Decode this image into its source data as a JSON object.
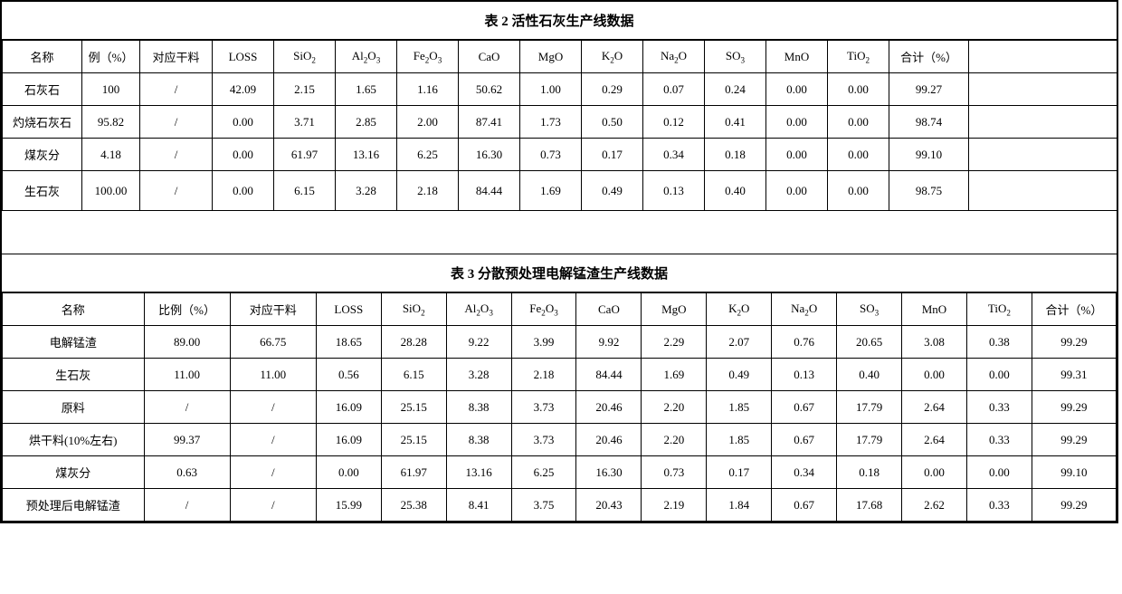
{
  "page": {
    "background_color": "#ffffff",
    "border_color": "#000000",
    "font_family": "SimSun",
    "title_fontsize": 15,
    "cell_fontsize": 13
  },
  "table2": {
    "title": "表 2  活性石灰生产线数据",
    "columns": [
      "名称",
      "例（%）",
      "对应干料",
      "LOSS",
      "SiO₂",
      "Al₂O₃",
      "Fe₂O₃",
      "CaO",
      "MgO",
      "K₂O",
      "Na₂O",
      "SO₃",
      "MnO",
      "TiO₂",
      "合计（%）"
    ],
    "rows": [
      {
        "name": "石灰石",
        "pct": "100",
        "dry": "/",
        "loss": "42.09",
        "sio2": "2.15",
        "al2o3": "1.65",
        "fe2o3": "1.16",
        "cao": "50.62",
        "mgo": "1.00",
        "k2o": "0.29",
        "na2o": "0.07",
        "so3": "0.24",
        "mno": "0.00",
        "tio2": "0.00",
        "sum": "99.27"
      },
      {
        "name": "灼烧石灰石",
        "pct": "95.82",
        "dry": "/",
        "loss": "0.00",
        "sio2": "3.71",
        "al2o3": "2.85",
        "fe2o3": "2.00",
        "cao": "87.41",
        "mgo": "1.73",
        "k2o": "0.50",
        "na2o": "0.12",
        "so3": "0.41",
        "mno": "0.00",
        "tio2": "0.00",
        "sum": "98.74"
      },
      {
        "name": "煤灰分",
        "pct": "4.18",
        "dry": "/",
        "loss": "0.00",
        "sio2": "61.97",
        "al2o3": "13.16",
        "fe2o3": "6.25",
        "cao": "16.30",
        "mgo": "0.73",
        "k2o": "0.17",
        "na2o": "0.34",
        "so3": "0.18",
        "mno": "0.00",
        "tio2": "0.00",
        "sum": "99.10"
      },
      {
        "name": "生石灰",
        "pct": "100.00",
        "dry": "/",
        "loss": "0.00",
        "sio2": "6.15",
        "al2o3": "3.28",
        "fe2o3": "2.18",
        "cao": "84.44",
        "mgo": "1.69",
        "k2o": "0.49",
        "na2o": "0.13",
        "so3": "0.40",
        "mno": "0.00",
        "tio2": "0.00",
        "sum": "98.75"
      }
    ]
  },
  "table3": {
    "title": "表 3  分散预处理电解锰渣生产线数据",
    "columns": [
      "名称",
      "比例（%）",
      "对应干料",
      "LOSS",
      "SiO₂",
      "Al₂O₃",
      "Fe₂O₃",
      "CaO",
      "MgO",
      "K₂O",
      "Na₂O",
      "SO₃",
      "MnO",
      "TiO₂",
      "合计（%）"
    ],
    "rows": [
      {
        "name": "电解锰渣",
        "pct": "89.00",
        "dry": "66.75",
        "loss": "18.65",
        "sio2": "28.28",
        "al2o3": "9.22",
        "fe2o3": "3.99",
        "cao": "9.92",
        "mgo": "2.29",
        "k2o": "2.07",
        "na2o": "0.76",
        "so3": "20.65",
        "mno": "3.08",
        "tio2": "0.38",
        "sum": "99.29"
      },
      {
        "name": "生石灰",
        "pct": "11.00",
        "dry": "11.00",
        "loss": "0.56",
        "sio2": "6.15",
        "al2o3": "3.28",
        "fe2o3": "2.18",
        "cao": "84.44",
        "mgo": "1.69",
        "k2o": "0.49",
        "na2o": "0.13",
        "so3": "0.40",
        "mno": "0.00",
        "tio2": "0.00",
        "sum": "99.31"
      },
      {
        "name": "原料",
        "pct": "/",
        "dry": "/",
        "loss": "16.09",
        "sio2": "25.15",
        "al2o3": "8.38",
        "fe2o3": "3.73",
        "cao": "20.46",
        "mgo": "2.20",
        "k2o": "1.85",
        "na2o": "0.67",
        "so3": "17.79",
        "mno": "2.64",
        "tio2": "0.33",
        "sum": "99.29"
      },
      {
        "name": "烘干料(10%左右)",
        "pct": "99.37",
        "dry": "/",
        "loss": "16.09",
        "sio2": "25.15",
        "al2o3": "8.38",
        "fe2o3": "3.73",
        "cao": "20.46",
        "mgo": "2.20",
        "k2o": "1.85",
        "na2o": "0.67",
        "so3": "17.79",
        "mno": "2.64",
        "tio2": "0.33",
        "sum": "99.29"
      },
      {
        "name": "煤灰分",
        "pct": "0.63",
        "dry": "/",
        "loss": "0.00",
        "sio2": "61.97",
        "al2o3": "13.16",
        "fe2o3": "6.25",
        "cao": "16.30",
        "mgo": "0.73",
        "k2o": "0.17",
        "na2o": "0.34",
        "so3": "0.18",
        "mno": "0.00",
        "tio2": "0.00",
        "sum": "99.10"
      },
      {
        "name": "预处理后电解锰渣",
        "pct": "/",
        "dry": "/",
        "loss": "15.99",
        "sio2": "25.38",
        "al2o3": "8.41",
        "fe2o3": "3.75",
        "cao": "20.43",
        "mgo": "2.19",
        "k2o": "1.84",
        "na2o": "0.67",
        "so3": "17.68",
        "mno": "2.62",
        "tio2": "0.33",
        "sum": "99.29"
      }
    ]
  }
}
